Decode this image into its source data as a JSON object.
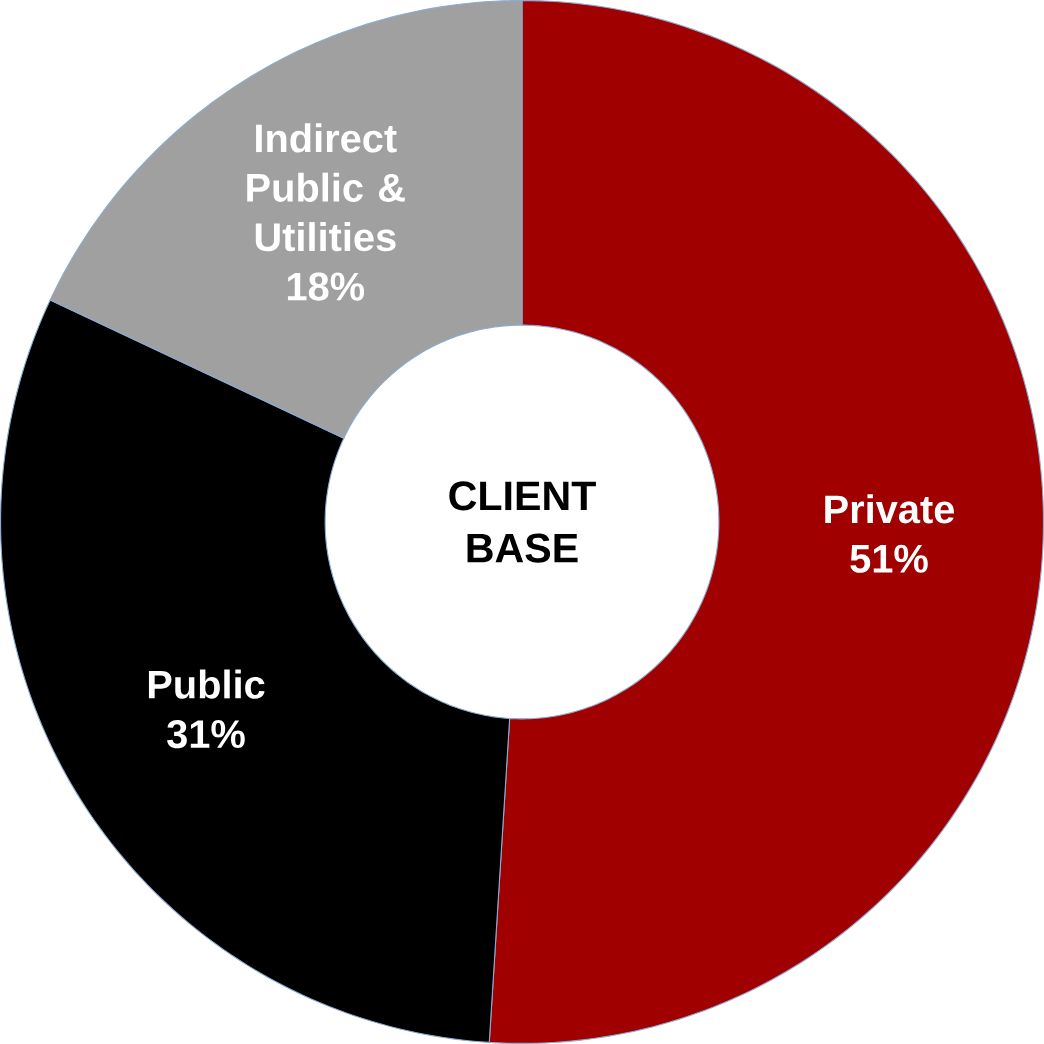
{
  "chart_data": {
    "type": "donut",
    "title": "CLIENT BASE",
    "categories": [
      "Private",
      "Public",
      "Indirect Public & Utilities"
    ],
    "values": [
      51,
      31,
      18
    ],
    "value_labels": [
      "51%",
      "31%",
      "18%"
    ],
    "colors": [
      "#a00000",
      "#000000",
      "#a0a0a0"
    ]
  }
}
